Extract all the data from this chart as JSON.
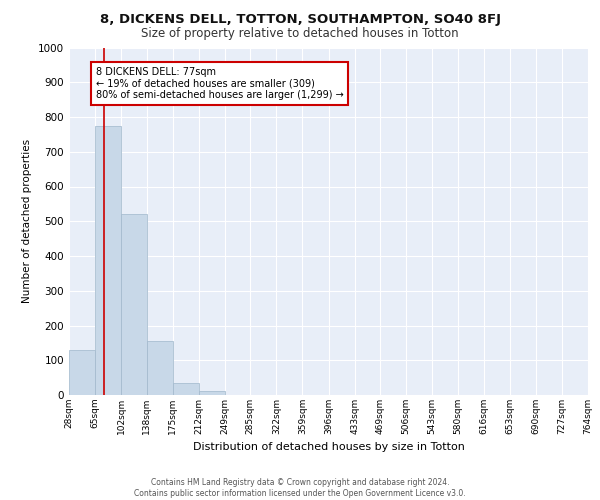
{
  "title": "8, DICKENS DELL, TOTTON, SOUTHAMPTON, SO40 8FJ",
  "subtitle": "Size of property relative to detached houses in Totton",
  "xlabel": "Distribution of detached houses by size in Totton",
  "ylabel": "Number of detached properties",
  "bar_edges": [
    28,
    65,
    102,
    138,
    175,
    212,
    249,
    285,
    322,
    359,
    396,
    433,
    469,
    506,
    543,
    580,
    616,
    653,
    690,
    727,
    764
  ],
  "bar_heights": [
    130,
    775,
    520,
    155,
    35,
    12,
    0,
    0,
    0,
    0,
    0,
    0,
    0,
    0,
    0,
    0,
    0,
    0,
    0,
    0
  ],
  "bar_color": "#c8d8e8",
  "bar_edgecolor": "#a0b8cc",
  "vline_x": 77,
  "vline_color": "#cc0000",
  "annotation_text": "8 DICKENS DELL: 77sqm\n← 19% of detached houses are smaller (309)\n80% of semi-detached houses are larger (1,299) →",
  "annotation_box_edgecolor": "#cc0000",
  "annotation_box_facecolor": "#ffffff",
  "ylim": [
    0,
    1000
  ],
  "yticks": [
    0,
    100,
    200,
    300,
    400,
    500,
    600,
    700,
    800,
    900,
    1000
  ],
  "background_color": "#e8eef8",
  "grid_color": "#ffffff",
  "footer_line1": "Contains HM Land Registry data © Crown copyright and database right 2024.",
  "footer_line2": "Contains public sector information licensed under the Open Government Licence v3.0.",
  "tick_labels": [
    "28sqm",
    "65sqm",
    "102sqm",
    "138sqm",
    "175sqm",
    "212sqm",
    "249sqm",
    "285sqm",
    "322sqm",
    "359sqm",
    "396sqm",
    "433sqm",
    "469sqm",
    "506sqm",
    "543sqm",
    "580sqm",
    "616sqm",
    "653sqm",
    "690sqm",
    "727sqm",
    "764sqm"
  ]
}
